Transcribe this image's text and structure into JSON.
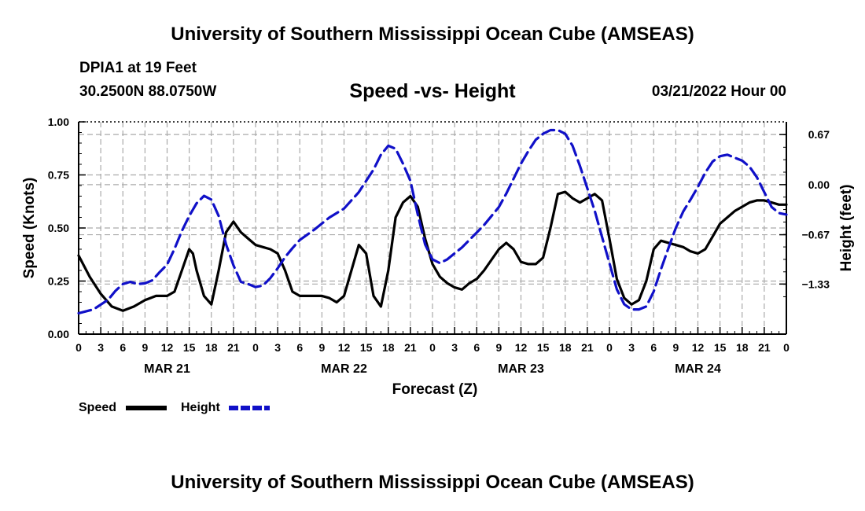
{
  "page": {
    "top_title": "University of Southern Mississippi Ocean Cube (AMSEAS)",
    "bottom_title": "University of Southern Mississippi Ocean Cube (AMSEAS)",
    "station": "DPIA1 at 19 Feet",
    "coords": "30.2500N  88.0750W",
    "chart_title": "Speed -vs- Height",
    "datetime": "03/21/2022 Hour 00",
    "legend_speed": "Speed",
    "legend_height": "Height"
  },
  "colors": {
    "speed": "#000000",
    "height": "#1010c8",
    "grid": "#aaaaaa"
  },
  "chart_data": {
    "type": "line",
    "title": "Speed -vs- Height",
    "xlabel": "Forecast (Z)",
    "ylabel": "Speed (Knots)",
    "y2label": "Height (feet)",
    "xlim": [
      0,
      96
    ],
    "ylim": [
      0,
      1
    ],
    "y2lim": [
      -2.0,
      0.84
    ],
    "x_ticks": [
      0,
      3,
      6,
      9,
      12,
      15,
      18,
      21,
      24,
      27,
      30,
      33,
      36,
      39,
      42,
      45,
      48,
      51,
      54,
      57,
      60,
      63,
      66,
      69,
      72,
      75,
      78,
      81,
      84,
      87,
      90,
      93,
      96
    ],
    "x_tick_labels": [
      "0",
      "3",
      "6",
      "9",
      "12",
      "15",
      "18",
      "21",
      "0",
      "3",
      "6",
      "9",
      "12",
      "15",
      "18",
      "21",
      "0",
      "3",
      "6",
      "9",
      "12",
      "15",
      "18",
      "21",
      "0",
      "3",
      "6",
      "9",
      "12",
      "15",
      "18",
      "21",
      "0"
    ],
    "day_labels": [
      {
        "x": 12,
        "label": "MAR 21"
      },
      {
        "x": 36,
        "label": "MAR 22"
      },
      {
        "x": 60,
        "label": "MAR 23"
      },
      {
        "x": 84,
        "label": "MAR 24"
      }
    ],
    "y_ticks": [
      0,
      0.25,
      0.5,
      0.75,
      1.0
    ],
    "y_tick_labels": [
      "0.00",
      "0.25",
      "0.50",
      "0.75",
      "1.00"
    ],
    "y2_ticks": [
      0.67,
      0.0,
      -0.67,
      -1.33
    ],
    "y2_tick_labels": [
      "0.67",
      "0.00",
      "−0.67",
      "−1.33"
    ],
    "grid": true,
    "series": [
      {
        "name": "Speed",
        "axis": "left",
        "style": "solid",
        "points": [
          [
            0,
            0.37
          ],
          [
            1.5,
            0.27
          ],
          [
            3,
            0.19
          ],
          [
            4.5,
            0.13
          ],
          [
            6,
            0.11
          ],
          [
            7.5,
            0.13
          ],
          [
            9,
            0.16
          ],
          [
            10.5,
            0.18
          ],
          [
            12,
            0.18
          ],
          [
            13,
            0.2
          ],
          [
            14,
            0.3
          ],
          [
            15,
            0.4
          ],
          [
            15.5,
            0.38
          ],
          [
            16,
            0.3
          ],
          [
            17,
            0.18
          ],
          [
            18,
            0.14
          ],
          [
            19,
            0.3
          ],
          [
            20,
            0.48
          ],
          [
            21,
            0.53
          ],
          [
            22,
            0.48
          ],
          [
            23,
            0.45
          ],
          [
            24,
            0.42
          ],
          [
            25,
            0.41
          ],
          [
            26,
            0.4
          ],
          [
            27,
            0.38
          ],
          [
            28,
            0.3
          ],
          [
            29,
            0.2
          ],
          [
            30,
            0.18
          ],
          [
            31,
            0.18
          ],
          [
            32,
            0.18
          ],
          [
            33,
            0.18
          ],
          [
            34,
            0.17
          ],
          [
            35,
            0.15
          ],
          [
            36,
            0.18
          ],
          [
            37,
            0.3
          ],
          [
            38,
            0.42
          ],
          [
            39,
            0.38
          ],
          [
            40,
            0.18
          ],
          [
            41,
            0.13
          ],
          [
            42,
            0.3
          ],
          [
            43,
            0.55
          ],
          [
            44,
            0.62
          ],
          [
            45,
            0.65
          ],
          [
            46,
            0.6
          ],
          [
            47,
            0.45
          ],
          [
            48,
            0.33
          ],
          [
            49,
            0.27
          ],
          [
            50,
            0.24
          ],
          [
            51,
            0.22
          ],
          [
            52,
            0.21
          ],
          [
            53,
            0.24
          ],
          [
            54,
            0.26
          ],
          [
            55,
            0.3
          ],
          [
            56,
            0.35
          ],
          [
            57,
            0.4
          ],
          [
            58,
            0.43
          ],
          [
            59,
            0.4
          ],
          [
            60,
            0.34
          ],
          [
            61,
            0.33
          ],
          [
            62,
            0.33
          ],
          [
            63,
            0.36
          ],
          [
            64,
            0.5
          ],
          [
            65,
            0.66
          ],
          [
            66,
            0.67
          ],
          [
            67,
            0.64
          ],
          [
            68,
            0.62
          ],
          [
            69,
            0.64
          ],
          [
            70,
            0.66
          ],
          [
            71,
            0.63
          ],
          [
            72,
            0.45
          ],
          [
            73,
            0.26
          ],
          [
            74,
            0.17
          ],
          [
            75,
            0.14
          ],
          [
            76,
            0.16
          ],
          [
            77,
            0.25
          ],
          [
            78,
            0.4
          ],
          [
            79,
            0.44
          ],
          [
            80,
            0.43
          ],
          [
            81,
            0.42
          ],
          [
            82,
            0.41
          ],
          [
            83,
            0.39
          ],
          [
            84,
            0.38
          ],
          [
            85,
            0.4
          ],
          [
            86,
            0.46
          ],
          [
            87,
            0.52
          ],
          [
            88,
            0.55
          ],
          [
            89,
            0.58
          ],
          [
            90,
            0.6
          ],
          [
            91,
            0.62
          ],
          [
            92,
            0.63
          ],
          [
            93,
            0.63
          ],
          [
            94,
            0.62
          ],
          [
            95,
            0.61
          ],
          [
            96,
            0.61
          ]
        ]
      },
      {
        "name": "Height",
        "axis": "right",
        "style": "dashed",
        "points": [
          [
            0,
            -1.72
          ],
          [
            2,
            -1.67
          ],
          [
            4,
            -1.54
          ],
          [
            5,
            -1.42
          ],
          [
            6,
            -1.33
          ],
          [
            7,
            -1.3
          ],
          [
            8,
            -1.33
          ],
          [
            9,
            -1.32
          ],
          [
            10,
            -1.28
          ],
          [
            11,
            -1.17
          ],
          [
            12,
            -1.07
          ],
          [
            13,
            -0.86
          ],
          [
            14,
            -0.62
          ],
          [
            15,
            -0.42
          ],
          [
            16,
            -0.25
          ],
          [
            17,
            -0.15
          ],
          [
            18,
            -0.2
          ],
          [
            19,
            -0.42
          ],
          [
            20,
            -0.8
          ],
          [
            21,
            -1.08
          ],
          [
            22,
            -1.3
          ],
          [
            23,
            -1.33
          ],
          [
            24,
            -1.37
          ],
          [
            25,
            -1.35
          ],
          [
            26,
            -1.25
          ],
          [
            27,
            -1.12
          ],
          [
            28,
            -0.97
          ],
          [
            29,
            -0.85
          ],
          [
            30,
            -0.74
          ],
          [
            32,
            -0.6
          ],
          [
            34,
            -0.44
          ],
          [
            36,
            -0.32
          ],
          [
            38,
            -0.1
          ],
          [
            40,
            0.2
          ],
          [
            41,
            0.4
          ],
          [
            42,
            0.52
          ],
          [
            43,
            0.48
          ],
          [
            44,
            0.28
          ],
          [
            45,
            0.05
          ],
          [
            46,
            -0.4
          ],
          [
            47,
            -0.8
          ],
          [
            48,
            -1.0
          ],
          [
            49,
            -1.05
          ],
          [
            50,
            -1.0
          ],
          [
            51,
            -0.92
          ],
          [
            52,
            -0.84
          ],
          [
            53,
            -0.74
          ],
          [
            54,
            -0.64
          ],
          [
            55,
            -0.54
          ],
          [
            56,
            -0.42
          ],
          [
            57,
            -0.3
          ],
          [
            58,
            -0.12
          ],
          [
            59,
            0.08
          ],
          [
            60,
            0.28
          ],
          [
            61,
            0.45
          ],
          [
            62,
            0.6
          ],
          [
            63,
            0.68
          ],
          [
            64,
            0.73
          ],
          [
            65,
            0.73
          ],
          [
            66,
            0.68
          ],
          [
            67,
            0.52
          ],
          [
            68,
            0.25
          ],
          [
            69,
            -0.05
          ],
          [
            70,
            -0.35
          ],
          [
            71,
            -0.7
          ],
          [
            72,
            -1.05
          ],
          [
            73,
            -1.4
          ],
          [
            74,
            -1.6
          ],
          [
            75,
            -1.67
          ],
          [
            76,
            -1.67
          ],
          [
            77,
            -1.63
          ],
          [
            78,
            -1.43
          ],
          [
            79,
            -1.13
          ],
          [
            80,
            -0.85
          ],
          [
            81,
            -0.58
          ],
          [
            82,
            -0.36
          ],
          [
            83,
            -0.2
          ],
          [
            84,
            -0.03
          ],
          [
            85,
            0.16
          ],
          [
            86,
            0.31
          ],
          [
            87,
            0.38
          ],
          [
            88,
            0.4
          ],
          [
            89,
            0.36
          ],
          [
            90,
            0.32
          ],
          [
            91,
            0.24
          ],
          [
            92,
            0.1
          ],
          [
            93,
            -0.1
          ],
          [
            94,
            -0.3
          ],
          [
            95,
            -0.38
          ],
          [
            96,
            -0.4
          ]
        ]
      }
    ]
  }
}
